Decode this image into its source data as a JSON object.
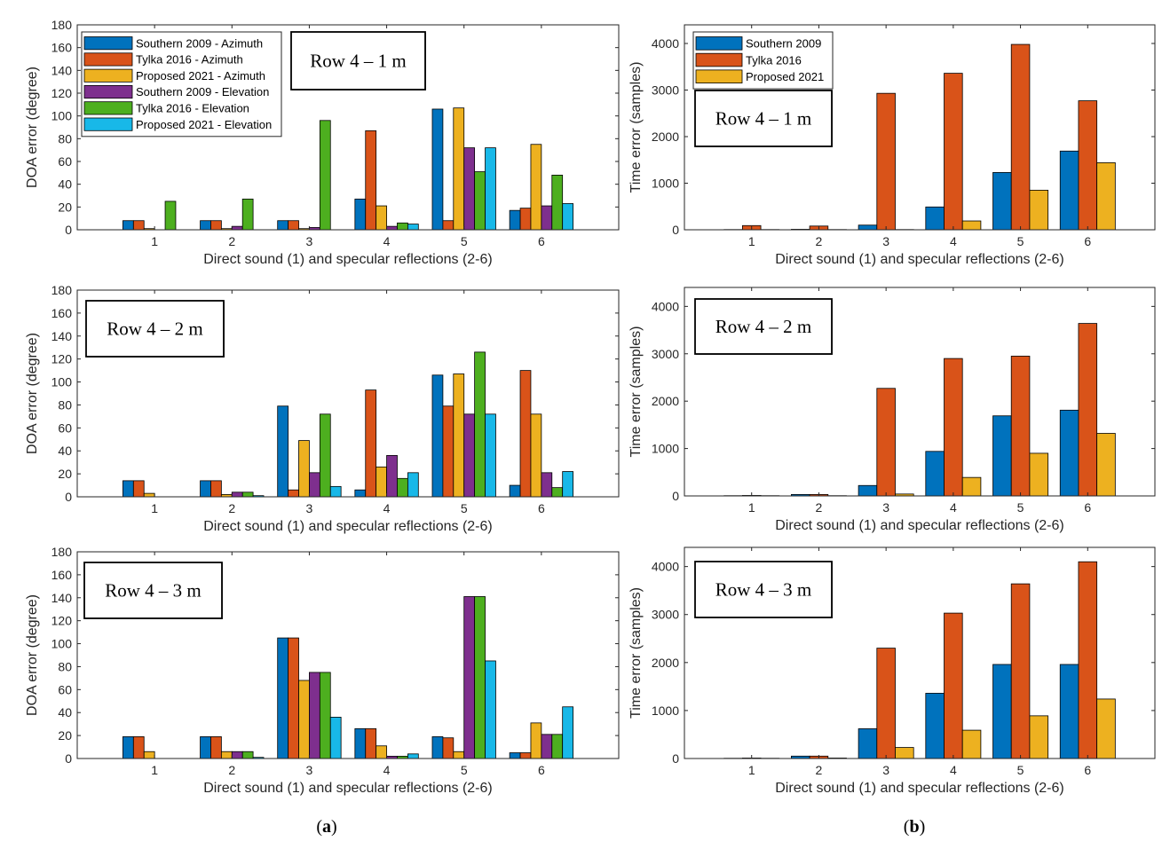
{
  "figure": {
    "captions": [
      {
        "open": "(",
        "letter": "a",
        "close": ")"
      },
      {
        "open": "(",
        "letter": "b",
        "close": ")"
      }
    ]
  },
  "chart_data": [
    {
      "id": "a1",
      "type": "bar",
      "column": "a",
      "categories": [
        "1",
        "2",
        "3",
        "4",
        "5",
        "6"
      ],
      "xlabel": "Direct sound (1) and specular reflections (2-6)",
      "ylabel": "DOA error (degree)",
      "ylim": [
        0,
        180
      ],
      "yticks": [
        0,
        20,
        40,
        60,
        80,
        100,
        120,
        140,
        160,
        180
      ],
      "annotation": "Row 4 – 1 m",
      "legend": "top-left",
      "series": [
        {
          "name": "Southern 2009 - Azimuth",
          "color": "#0072BD",
          "values": [
            8,
            8,
            8,
            27,
            106,
            17
          ]
        },
        {
          "name": "Tylka 2016 - Azimuth",
          "color": "#D95319",
          "values": [
            8,
            8,
            8,
            87,
            8,
            19
          ]
        },
        {
          "name": "Proposed 2021 - Azimuth",
          "color": "#EDB120",
          "values": [
            1,
            1,
            1,
            21,
            107,
            75
          ]
        },
        {
          "name": "Southern 2009 - Elevation",
          "color": "#7E2F8E",
          "values": [
            0,
            3,
            2,
            3,
            72,
            21
          ]
        },
        {
          "name": "Tylka 2016 - Elevation",
          "color": "#4DAF1F",
          "values": [
            25,
            27,
            96,
            6,
            51,
            48
          ]
        },
        {
          "name": "Proposed 2021 - Elevation",
          "color": "#18B8E8",
          "values": [
            0,
            0,
            0,
            5,
            72,
            23
          ]
        }
      ]
    },
    {
      "id": "a2",
      "type": "bar",
      "column": "a",
      "categories": [
        "1",
        "2",
        "3",
        "4",
        "5",
        "6"
      ],
      "xlabel": "Direct sound (1) and specular reflections (2-6)",
      "ylabel": "DOA error (degree)",
      "ylim": [
        0,
        180
      ],
      "yticks": [
        0,
        20,
        40,
        60,
        80,
        100,
        120,
        140,
        160,
        180
      ],
      "annotation": "Row 4 – 2 m",
      "series": [
        {
          "color": "#0072BD",
          "values": [
            14,
            14,
            79,
            6,
            106,
            10
          ]
        },
        {
          "color": "#D95319",
          "values": [
            14,
            14,
            6,
            93,
            79,
            110
          ]
        },
        {
          "color": "#EDB120",
          "values": [
            3,
            2,
            49,
            26,
            107,
            72
          ]
        },
        {
          "color": "#7E2F8E",
          "values": [
            0,
            4,
            21,
            36,
            72,
            21
          ]
        },
        {
          "color": "#4DAF1F",
          "values": [
            0,
            4,
            72,
            16,
            126,
            8
          ]
        },
        {
          "color": "#18B8E8",
          "values": [
            0,
            1,
            9,
            21,
            72,
            22
          ]
        }
      ]
    },
    {
      "id": "a3",
      "type": "bar",
      "column": "a",
      "categories": [
        "1",
        "2",
        "3",
        "4",
        "5",
        "6"
      ],
      "xlabel": "Direct sound (1) and specular reflections (2-6)",
      "ylabel": "DOA error (degree)",
      "ylim": [
        0,
        180
      ],
      "yticks": [
        0,
        20,
        40,
        60,
        80,
        100,
        120,
        140,
        160,
        180
      ],
      "annotation": "Row 4 – 3 m",
      "series": [
        {
          "color": "#0072BD",
          "values": [
            19,
            19,
            105,
            26,
            19,
            5
          ]
        },
        {
          "color": "#D95319",
          "values": [
            19,
            19,
            105,
            26,
            18,
            5
          ]
        },
        {
          "color": "#EDB120",
          "values": [
            6,
            6,
            68,
            11,
            6,
            31
          ]
        },
        {
          "color": "#7E2F8E",
          "values": [
            0,
            6,
            75,
            2,
            141,
            21
          ]
        },
        {
          "color": "#4DAF1F",
          "values": [
            0,
            6,
            75,
            2,
            141,
            21
          ]
        },
        {
          "color": "#18B8E8",
          "values": [
            0,
            1,
            36,
            4,
            85,
            45
          ]
        }
      ]
    },
    {
      "id": "b1",
      "type": "bar",
      "column": "b",
      "categories": [
        "1",
        "2",
        "3",
        "4",
        "5",
        "6"
      ],
      "xlabel": "Direct sound (1) and specular reflections (2-6)",
      "ylabel": "Time error (samples)",
      "ylim": [
        0,
        4400
      ],
      "yticks": [
        0,
        1000,
        2000,
        3000,
        4000
      ],
      "annotation": "Row 4 – 1 m",
      "legend": "top-left",
      "series": [
        {
          "name": "Southern 2009",
          "color": "#0072BD",
          "values": [
            5,
            10,
            100,
            490,
            1230,
            1690
          ]
        },
        {
          "name": "Tylka 2016",
          "color": "#D95319",
          "values": [
            90,
            80,
            2930,
            3360,
            3980,
            2770
          ]
        },
        {
          "name": "Proposed 2021",
          "color": "#EDB120",
          "values": [
            5,
            5,
            5,
            190,
            850,
            1440
          ]
        }
      ]
    },
    {
      "id": "b2",
      "type": "bar",
      "column": "b",
      "categories": [
        "1",
        "2",
        "3",
        "4",
        "5",
        "6"
      ],
      "xlabel": "Direct sound (1) and specular reflections (2-6)",
      "ylabel": "Time error (samples)",
      "ylim": [
        0,
        4400
      ],
      "yticks": [
        0,
        1000,
        2000,
        3000,
        4000
      ],
      "annotation": "Row 4 – 2 m",
      "series": [
        {
          "color": "#0072BD",
          "values": [
            5,
            30,
            220,
            940,
            1690,
            1810
          ]
        },
        {
          "color": "#D95319",
          "values": [
            10,
            30,
            2270,
            2900,
            2950,
            3640
          ]
        },
        {
          "color": "#EDB120",
          "values": [
            5,
            5,
            40,
            390,
            900,
            1320
          ]
        }
      ]
    },
    {
      "id": "b3",
      "type": "bar",
      "column": "b",
      "categories": [
        "1",
        "2",
        "3",
        "4",
        "5",
        "6"
      ],
      "xlabel": "Direct sound (1) and specular reflections (2-6)",
      "ylabel": "Time error (samples)",
      "ylim": [
        0,
        4400
      ],
      "yticks": [
        0,
        1000,
        2000,
        3000,
        4000
      ],
      "annotation": "Row 4 – 3 m",
      "series": [
        {
          "color": "#0072BD",
          "values": [
            5,
            50,
            620,
            1360,
            1960,
            1960
          ]
        },
        {
          "color": "#D95319",
          "values": [
            10,
            50,
            2300,
            3030,
            3640,
            4100
          ]
        },
        {
          "color": "#EDB120",
          "values": [
            5,
            10,
            230,
            590,
            890,
            1240
          ]
        }
      ]
    }
  ]
}
